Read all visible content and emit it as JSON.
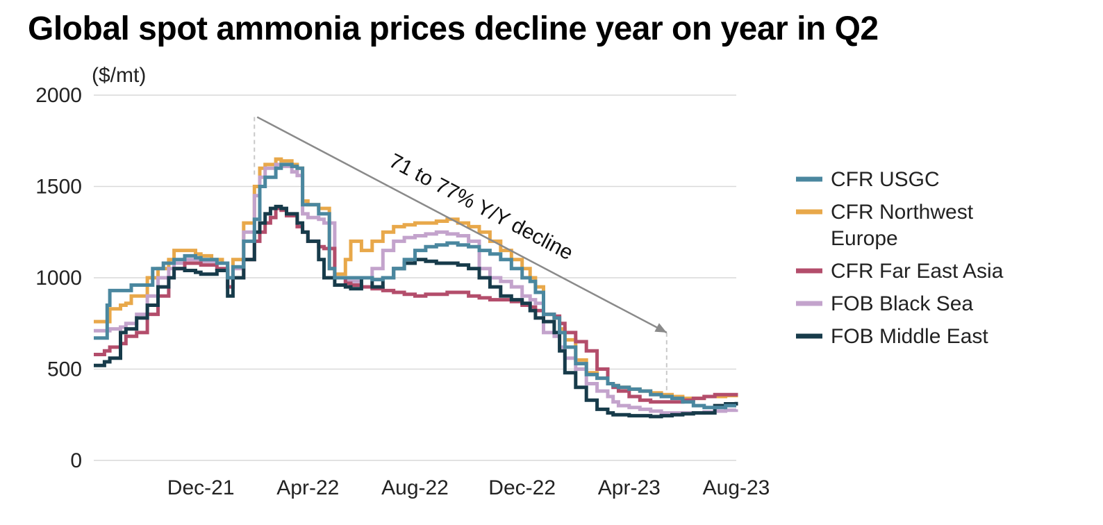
{
  "chart_data": {
    "type": "line",
    "title": "Global spot ammonia prices decline year on year in Q2",
    "ylabel": "($/mt)",
    "xlabel": "",
    "ylim": [
      0,
      2000
    ],
    "yticks": [
      0,
      500,
      1000,
      1500,
      2000
    ],
    "xlim": [
      0,
      24
    ],
    "xticks": [
      {
        "label": "Dec-21",
        "x": 4
      },
      {
        "label": "Apr-22",
        "x": 8
      },
      {
        "label": "Aug-22",
        "x": 12
      },
      {
        "label": "Dec-22",
        "x": 16
      },
      {
        "label": "Apr-23",
        "x": 20
      },
      {
        "label": "Aug-23",
        "x": 24
      }
    ],
    "grid": true,
    "legend_position": "right",
    "annotation": {
      "text": "71 to 77% Y/Y decline",
      "from": {
        "x": 6.0,
        "y": 1880
      },
      "to": {
        "x": 21.4,
        "y": 700
      },
      "guide_from_x": 6.0,
      "guide_to_x": 21.4
    },
    "series": [
      {
        "name": "CFR USGC",
        "color": "#4a879f",
        "x": [
          0,
          0.4,
          0.5,
          0.6,
          1.2,
          1.4,
          2.2,
          2.6,
          3.0,
          3.4,
          3.8,
          4.0,
          4.6,
          5.0,
          5.2,
          5.6,
          6.0,
          6.2,
          6.4,
          6.8,
          7.0,
          7.4,
          7.6,
          7.8,
          8.0,
          8.2,
          8.4,
          8.8,
          9.0,
          9.4,
          9.6,
          10.0,
          10.4,
          10.8,
          11.2,
          11.6,
          12.0,
          12.4,
          12.8,
          13.2,
          13.6,
          14.0,
          14.4,
          14.8,
          15.2,
          15.6,
          16.0,
          16.3,
          16.5,
          16.8,
          17.2,
          17.4,
          17.6,
          18.0,
          18.4,
          18.8,
          19.2,
          19.4,
          19.6,
          20.0,
          20.4,
          20.8,
          21.2,
          21.6,
          22.0,
          22.4,
          22.8,
          23.2,
          23.6,
          24.0
        ],
        "values": [
          670,
          670,
          850,
          930,
          930,
          960,
          1050,
          1080,
          1100,
          1120,
          1110,
          1100,
          1080,
          1000,
          1060,
          1200,
          1320,
          1500,
          1550,
          1600,
          1620,
          1610,
          1600,
          1400,
          1400,
          1400,
          1350,
          1050,
          1000,
          1000,
          1000,
          1000,
          990,
          1000,
          1050,
          1100,
          1150,
          1170,
          1180,
          1190,
          1180,
          1170,
          1150,
          1130,
          1100,
          1050,
          1000,
          980,
          920,
          800,
          780,
          700,
          620,
          530,
          470,
          450,
          420,
          410,
          400,
          390,
          380,
          360,
          350,
          340,
          320,
          300,
          290,
          290,
          300,
          300
        ]
      },
      {
        "name": "CFR Northwest Europe",
        "color": "#e8a84a",
        "x": [
          0,
          0.4,
          0.6,
          1.0,
          1.2,
          1.4,
          2.0,
          2.4,
          2.8,
          3.0,
          3.4,
          3.8,
          4.0,
          4.4,
          4.8,
          5.0,
          5.2,
          5.6,
          6.0,
          6.2,
          6.4,
          6.8,
          7.0,
          7.4,
          7.6,
          7.8,
          8.0,
          8.2,
          8.4,
          8.8,
          9.0,
          9.4,
          9.6,
          10.0,
          10.4,
          10.8,
          11.2,
          11.6,
          12.0,
          12.4,
          12.8,
          13.2,
          13.6,
          14.0,
          14.4,
          14.8,
          15.2,
          15.6,
          16.0,
          16.3,
          16.5,
          16.8,
          17.2,
          17.4,
          17.6,
          18.0,
          18.4,
          18.8,
          19.2,
          19.4,
          19.6,
          20.0,
          20.4,
          20.8,
          21.2,
          21.6,
          22.0,
          22.4,
          22.8,
          23.2,
          23.6,
          24.0
        ],
        "values": [
          760,
          760,
          830,
          850,
          860,
          900,
          1000,
          1050,
          1100,
          1150,
          1150,
          1130,
          1120,
          1100,
          1080,
          1000,
          1100,
          1300,
          1500,
          1600,
          1620,
          1650,
          1640,
          1620,
          1600,
          1420,
          1400,
          1400,
          1380,
          1050,
          1020,
          1100,
          1200,
          1150,
          1200,
          1250,
          1280,
          1290,
          1300,
          1300,
          1310,
          1320,
          1300,
          1280,
          1250,
          1200,
          1150,
          1100,
          1050,
          1000,
          950,
          800,
          780,
          720,
          660,
          550,
          480,
          450,
          420,
          410,
          400,
          390,
          380,
          370,
          360,
          350,
          340,
          340,
          350,
          350,
          355,
          360
        ]
      },
      {
        "name": "CFR Far East Asia",
        "color": "#b34d6b",
        "x": [
          0,
          0.4,
          0.6,
          1.0,
          1.2,
          1.6,
          2.0,
          2.4,
          2.8,
          3.0,
          3.4,
          3.8,
          4.0,
          4.6,
          5.0,
          5.2,
          5.6,
          6.0,
          6.2,
          6.4,
          6.6,
          6.8,
          7.0,
          7.2,
          7.6,
          7.8,
          8.0,
          8.4,
          8.6,
          9.0,
          9.4,
          9.6,
          10.0,
          10.4,
          10.8,
          11.2,
          11.6,
          12.0,
          12.4,
          12.8,
          13.2,
          13.6,
          14.0,
          14.4,
          14.8,
          15.2,
          15.6,
          16.0,
          16.3,
          16.5,
          16.8,
          17.2,
          17.4,
          17.6,
          18.0,
          18.4,
          18.8,
          19.2,
          19.4,
          19.6,
          20.0,
          20.4,
          20.8,
          21.2,
          21.6,
          22.0,
          22.4,
          22.8,
          23.2,
          23.6,
          24.0
        ],
        "values": [
          580,
          600,
          620,
          640,
          680,
          700,
          800,
          900,
          1000,
          1050,
          1080,
          1080,
          1070,
          1050,
          950,
          1000,
          1100,
          1200,
          1250,
          1300,
          1330,
          1380,
          1370,
          1340,
          1280,
          1250,
          1200,
          1170,
          1160,
          1000,
          970,
          960,
          950,
          940,
          930,
          920,
          910,
          900,
          910,
          910,
          920,
          920,
          900,
          890,
          880,
          880,
          870,
          850,
          840,
          820,
          800,
          790,
          750,
          700,
          650,
          600,
          500,
          420,
          400,
          380,
          350,
          330,
          320,
          320,
          320,
          330,
          340,
          350,
          360,
          360,
          370
        ]
      },
      {
        "name": "FOB Black Sea",
        "color": "#c3a3cc",
        "x": [
          0,
          0.4,
          0.6,
          1.0,
          1.2,
          1.6,
          2.0,
          2.4,
          2.8,
          3.0,
          3.4,
          3.8,
          4.0,
          4.6,
          5.0,
          5.2,
          5.6,
          6.0,
          6.2,
          6.4,
          6.8,
          7.0,
          7.4,
          7.6,
          7.8,
          8.0,
          8.4,
          8.6,
          9.0,
          9.4,
          9.6,
          10.0,
          10.4,
          10.8,
          11.2,
          11.6,
          12.0,
          12.4,
          12.8,
          13.2,
          13.6,
          14.0,
          14.4,
          14.8,
          15.2,
          15.6,
          16.0,
          16.3,
          16.5,
          16.8,
          17.2,
          17.4,
          17.6,
          18.0,
          18.4,
          18.8,
          19.2,
          19.4,
          19.6,
          20.0,
          20.4,
          20.8,
          21.2,
          21.6,
          22.0,
          22.4,
          22.8,
          23.2,
          23.6,
          24.0
        ],
        "values": [
          710,
          710,
          720,
          730,
          750,
          800,
          900,
          1000,
          1050,
          1080,
          1100,
          1100,
          1090,
          1080,
          950,
          1050,
          1250,
          1450,
          1550,
          1600,
          1620,
          1610,
          1580,
          1560,
          1350,
          1330,
          1320,
          1300,
          1000,
          980,
          980,
          1000,
          1050,
          1150,
          1200,
          1220,
          1230,
          1240,
          1250,
          1240,
          1230,
          1200,
          1050,
          1000,
          980,
          950,
          900,
          880,
          860,
          700,
          680,
          620,
          560,
          500,
          420,
          380,
          350,
          320,
          300,
          290,
          280,
          270,
          260,
          260,
          260,
          260,
          265,
          270,
          275,
          280
        ]
      },
      {
        "name": "FOB Middle East",
        "color": "#173b4a",
        "x": [
          0,
          0.4,
          0.6,
          1.0,
          1.2,
          1.6,
          2.0,
          2.4,
          2.8,
          3.0,
          3.4,
          3.8,
          4.0,
          4.6,
          5.0,
          5.2,
          5.6,
          6.0,
          6.2,
          6.4,
          6.6,
          6.8,
          7.0,
          7.2,
          7.6,
          7.8,
          8.0,
          8.4,
          8.6,
          9.0,
          9.4,
          9.6,
          10.0,
          10.4,
          10.8,
          11.2,
          11.6,
          12.0,
          12.4,
          12.8,
          13.2,
          13.6,
          14.0,
          14.4,
          14.8,
          15.2,
          15.6,
          16.0,
          16.3,
          16.5,
          16.8,
          17.2,
          17.4,
          17.6,
          18.0,
          18.4,
          18.8,
          19.2,
          19.4,
          19.6,
          20.0,
          20.4,
          20.8,
          21.2,
          21.6,
          22.0,
          22.4,
          22.8,
          23.2,
          23.6,
          24.0
        ],
        "values": [
          520,
          540,
          560,
          700,
          720,
          780,
          850,
          950,
          1000,
          1050,
          1040,
          1030,
          1020,
          1040,
          900,
          1000,
          1100,
          1250,
          1300,
          1350,
          1380,
          1390,
          1380,
          1350,
          1300,
          1250,
          1200,
          1100,
          1000,
          960,
          950,
          940,
          1000,
          950,
          1000,
          1050,
          1080,
          1100,
          1090,
          1080,
          1080,
          1070,
          1050,
          1000,
          950,
          900,
          880,
          860,
          820,
          780,
          760,
          700,
          600,
          480,
          400,
          330,
          280,
          260,
          250,
          250,
          245,
          245,
          240,
          245,
          250,
          255,
          260,
          260,
          300,
          310,
          320
        ]
      }
    ]
  }
}
